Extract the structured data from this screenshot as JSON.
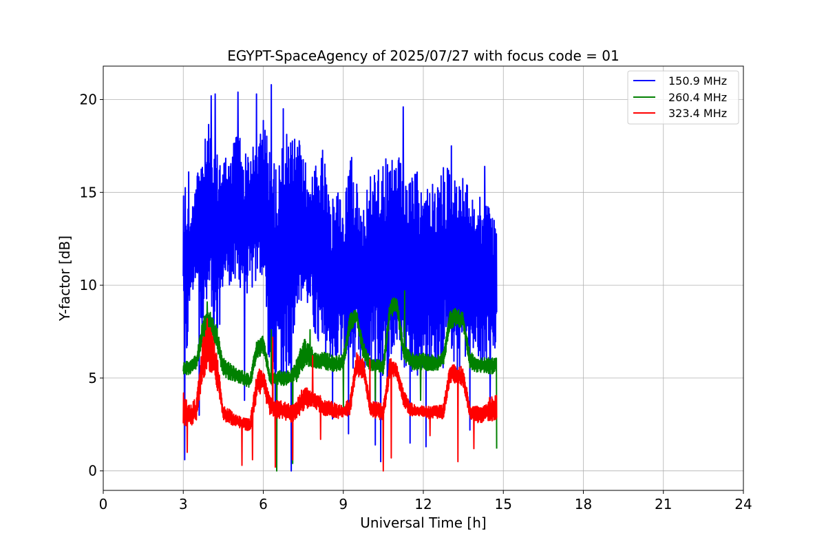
{
  "chart_data": {
    "type": "line",
    "title": "EGYPT-SpaceAgency of 2025/07/27 with focus code = 01",
    "xlabel": "Universal Time [h]",
    "ylabel": "Y-factor [dB]",
    "xlim": [
      0,
      24
    ],
    "ylim": [
      -1.05,
      21.8
    ],
    "xticks": [
      0,
      3,
      6,
      9,
      12,
      15,
      18,
      21,
      24
    ],
    "yticks": [
      0,
      5,
      10,
      15,
      20
    ],
    "grid": true,
    "legend_position": "top-right",
    "series": [
      {
        "name": "150.9 MHz",
        "color": "#0000ff",
        "x": [
          3.0,
          3.1,
          3.25,
          3.5,
          3.75,
          4.0,
          4.25,
          4.5,
          4.75,
          5.0,
          5.25,
          5.5,
          5.75,
          6.0,
          6.25,
          6.5,
          6.75,
          7.0,
          7.25,
          7.5,
          7.75,
          8.0,
          8.25,
          8.5,
          8.75,
          9.0,
          9.25,
          9.5,
          9.75,
          10.0,
          10.25,
          10.5,
          10.75,
          11.0,
          11.25,
          11.5,
          11.75,
          12.0,
          12.25,
          12.5,
          12.75,
          13.0,
          13.25,
          13.5,
          13.75,
          14.0,
          14.25,
          14.5,
          14.75
        ],
        "low": [
          9.0,
          4.5,
          9.5,
          9.5,
          7.5,
          9.0,
          6.0,
          10.0,
          10.0,
          9.5,
          9.5,
          9.5,
          10.0,
          10.5,
          4.5,
          5.0,
          4.5,
          5.5,
          9.0,
          9.0,
          8.5,
          6.5,
          5.5,
          6.0,
          5.5,
          6.0,
          5.5,
          5.5,
          5.0,
          5.5,
          6.0,
          4.0,
          5.5,
          6.5,
          5.5,
          5.5,
          5.0,
          5.5,
          5.0,
          5.5,
          5.5,
          5.5,
          5.0,
          6.0,
          6.0,
          6.0,
          5.5,
          6.0,
          6.0
        ],
        "high": [
          15.5,
          16.0,
          13.5,
          16.0,
          17.5,
          19.0,
          17.0,
          17.5,
          16.5,
          19.0,
          17.0,
          17.5,
          17.5,
          19.0,
          18.0,
          16.0,
          18.5,
          18.0,
          18.5,
          17.0,
          16.0,
          16.5,
          17.5,
          14.0,
          16.0,
          14.0,
          18.0,
          15.5,
          14.5,
          16.0,
          16.5,
          16.5,
          16.5,
          17.5,
          16.0,
          15.5,
          16.5,
          15.0,
          15.5,
          15.5,
          16.5,
          16.5,
          15.5,
          16.0,
          15.0,
          14.5,
          15.0,
          14.0,
          13.5
        ],
        "spikes_high": [
          [
            3.2,
            16.1
          ],
          [
            4.05,
            20.2
          ],
          [
            4.2,
            20.3
          ],
          [
            5.05,
            20.4
          ],
          [
            5.75,
            20.3
          ],
          [
            6.3,
            20.8
          ],
          [
            6.75,
            19.5
          ],
          [
            11.25,
            19.6
          ],
          [
            13.05,
            17.5
          ],
          [
            14.3,
            16.4
          ],
          [
            10.6,
            16.8
          ]
        ],
        "spikes_low": [
          [
            3.05,
            0.6
          ],
          [
            3.6,
            3.0
          ],
          [
            5.3,
            3.8
          ],
          [
            6.45,
            2.5
          ],
          [
            7.05,
            0.0
          ],
          [
            8.6,
            2.8
          ],
          [
            9.2,
            2.0
          ],
          [
            10.2,
            1.4
          ],
          [
            10.4,
            0.5
          ],
          [
            11.5,
            1.5
          ],
          [
            12.1,
            1.3
          ],
          [
            13.75,
            2.2
          ],
          [
            14.5,
            3.5
          ]
        ]
      },
      {
        "name": "260.4 MHz",
        "color": "#008000",
        "x": [
          3.0,
          3.25,
          3.5,
          3.75,
          4.0,
          4.25,
          4.5,
          4.75,
          5.0,
          5.25,
          5.5,
          5.75,
          6.0,
          6.25,
          6.5,
          6.75,
          7.0,
          7.25,
          7.5,
          7.75,
          8.0,
          8.25,
          8.5,
          8.75,
          9.0,
          9.25,
          9.5,
          9.75,
          10.0,
          10.25,
          10.5,
          10.75,
          11.0,
          11.25,
          11.5,
          11.75,
          12.0,
          12.25,
          12.5,
          12.75,
          13.0,
          13.25,
          13.5,
          13.75,
          14.0,
          14.25,
          14.5,
          14.75
        ],
        "low": [
          5.1,
          5.2,
          5.5,
          7.0,
          7.5,
          6.5,
          5.0,
          4.9,
          4.8,
          4.6,
          4.4,
          6.0,
          6.3,
          4.6,
          4.6,
          4.6,
          4.6,
          4.8,
          5.5,
          5.6,
          5.5,
          5.5,
          5.3,
          5.3,
          5.5,
          7.5,
          8.0,
          6.0,
          5.4,
          5.4,
          5.2,
          8.2,
          8.6,
          6.0,
          5.5,
          5.4,
          5.4,
          5.4,
          5.4,
          5.6,
          7.6,
          7.8,
          7.6,
          5.5,
          5.3,
          5.3,
          5.2,
          5.3
        ],
        "high": [
          5.9,
          6.0,
          6.3,
          8.3,
          8.6,
          7.8,
          6.1,
          5.8,
          5.5,
          5.4,
          5.2,
          7.0,
          7.3,
          5.3,
          5.4,
          5.4,
          5.4,
          6.0,
          7.3,
          6.8,
          6.3,
          6.4,
          6.3,
          6.2,
          6.3,
          8.5,
          8.7,
          7.0,
          6.1,
          6.0,
          6.0,
          9.2,
          9.5,
          7.0,
          6.4,
          6.3,
          6.4,
          6.3,
          6.2,
          6.5,
          8.6,
          8.8,
          8.5,
          6.4,
          6.2,
          6.1,
          6.1,
          6.1
        ],
        "spikes_high": [
          [
            3.9,
            9.1
          ],
          [
            6.3,
            7.6
          ],
          [
            7.75,
            7.6
          ],
          [
            11.3,
            9.7
          ]
        ],
        "spikes_low": [
          [
            6.5,
            0.0
          ],
          [
            7.1,
            0.4
          ],
          [
            9.0,
            3.3
          ],
          [
            10.2,
            3.8
          ],
          [
            11.9,
            3.8
          ],
          [
            14.75,
            1.2
          ]
        ]
      },
      {
        "name": "323.4 MHz",
        "color": "#ff0000",
        "x": [
          3.0,
          3.25,
          3.5,
          3.75,
          4.0,
          4.25,
          4.5,
          4.75,
          5.0,
          5.25,
          5.5,
          5.75,
          6.0,
          6.25,
          6.5,
          6.75,
          7.0,
          7.25,
          7.5,
          7.75,
          8.0,
          8.25,
          8.5,
          8.75,
          9.0,
          9.25,
          9.5,
          9.75,
          10.0,
          10.25,
          10.5,
          10.75,
          11.0,
          11.25,
          11.5,
          11.75,
          12.0,
          12.25,
          12.5,
          12.75,
          13.0,
          13.25,
          13.5,
          13.75,
          14.0,
          14.25,
          14.5,
          14.75
        ],
        "low": [
          2.4,
          2.4,
          2.6,
          5.0,
          5.3,
          4.5,
          2.7,
          2.5,
          2.4,
          2.2,
          2.0,
          3.8,
          4.2,
          3.0,
          2.8,
          2.8,
          2.6,
          2.7,
          3.2,
          3.4,
          3.3,
          3.0,
          2.9,
          2.8,
          2.9,
          3.0,
          5.0,
          5.0,
          3.0,
          2.8,
          2.7,
          5.0,
          5.0,
          3.5,
          2.9,
          2.9,
          2.9,
          2.8,
          2.8,
          2.8,
          4.7,
          4.7,
          4.5,
          2.8,
          2.6,
          2.6,
          2.6,
          2.7
        ],
        "high": [
          4.3,
          3.5,
          4.0,
          7.5,
          7.8,
          6.5,
          3.5,
          3.3,
          3.0,
          2.9,
          2.8,
          5.4,
          5.6,
          4.0,
          3.8,
          3.8,
          3.6,
          3.8,
          4.6,
          4.4,
          4.3,
          3.9,
          3.8,
          3.6,
          3.5,
          4.0,
          6.4,
          6.2,
          3.8,
          3.7,
          3.6,
          6.1,
          5.9,
          4.4,
          3.7,
          3.5,
          3.5,
          3.5,
          3.5,
          3.6,
          5.8,
          5.7,
          5.6,
          3.5,
          3.5,
          3.5,
          4.0,
          4.1
        ],
        "spikes_high": [
          [
            3.9,
            8.2
          ],
          [
            6.35,
            7.2
          ],
          [
            7.85,
            6.2
          ],
          [
            10.0,
            6.0
          ]
        ],
        "spikes_low": [
          [
            3.15,
            1.0
          ],
          [
            5.2,
            0.3
          ],
          [
            5.6,
            0.6
          ],
          [
            6.45,
            0.2
          ],
          [
            7.1,
            0.6
          ],
          [
            8.15,
            1.7
          ],
          [
            10.5,
            0.0
          ],
          [
            10.8,
            0.7
          ],
          [
            12.25,
            1.9
          ],
          [
            13.3,
            0.5
          ],
          [
            13.9,
            1.2
          ]
        ]
      }
    ]
  }
}
